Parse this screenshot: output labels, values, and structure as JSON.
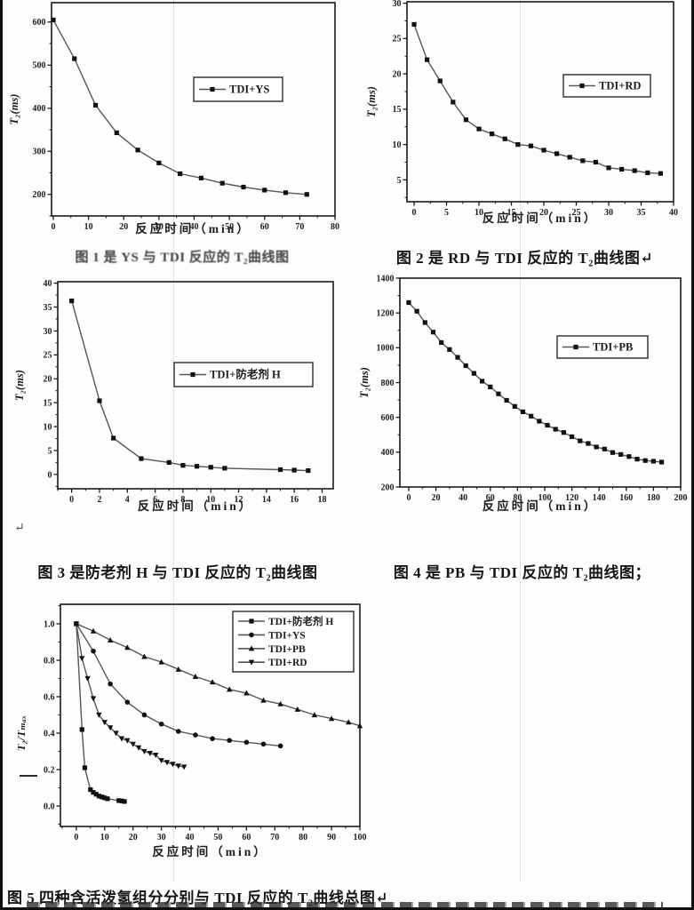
{
  "page": {
    "caption_fig1": "图 1 是 YS 与 TDI 反应的 T₂曲线图",
    "caption_fig2": "图 2 是 RD 与 TDI 反应的 T₂曲线图↵",
    "caption_fig3": "图 3 是防老剂 H 与 TDI 反应的 T₂曲线图",
    "caption_fig4": "图 4 是 PB 与 TDI 反应的 T₂曲线图；",
    "caption_fig5": "图 5  四种含活泼氢组分分别与 TDI 反应的 T₂曲线总图↵",
    "paragraph_mark": "↵",
    "line_color": "#565656",
    "marker_color": "#111111"
  },
  "chart_data": [
    {
      "type": "line",
      "title": "",
      "xlabel": "反应时间（min）",
      "ylabel": "T₂(ms)",
      "xlim": [
        -0.5,
        80
      ],
      "ylim": [
        150,
        645
      ],
      "xticks": [
        0,
        10,
        20,
        30,
        40,
        50,
        60,
        70,
        80
      ],
      "yticks": [
        200,
        300,
        400,
        500,
        600
      ],
      "xminor": 5,
      "yminor": 50,
      "legend_position": "inside-right",
      "series": [
        {
          "name": "TDI+YS",
          "marker": "square",
          "x": [
            0,
            6,
            12,
            18,
            24,
            30,
            36,
            42,
            48,
            54,
            60,
            66,
            72
          ],
          "y": [
            605,
            515,
            407,
            343,
            303,
            273,
            248,
            238,
            226,
            217,
            210,
            204,
            200
          ]
        }
      ]
    },
    {
      "type": "line",
      "title": "",
      "xlabel": "反应时间（min）",
      "ylabel": "T₂(ms)",
      "xlim": [
        -1.1,
        40
      ],
      "ylim": [
        1.9,
        30.2
      ],
      "xticks": [
        0,
        5,
        10,
        15,
        20,
        25,
        30,
        35,
        40
      ],
      "yticks": [
        5,
        10,
        15,
        20,
        25,
        30
      ],
      "xminor": 2.5,
      "yminor": 2.5,
      "legend_position": "inside-right",
      "series": [
        {
          "name": "TDI+RD",
          "marker": "square",
          "x": [
            0,
            2,
            4,
            6,
            8,
            10,
            12,
            14,
            16,
            18,
            20,
            22,
            24,
            26,
            28,
            30,
            32,
            34,
            36,
            38
          ],
          "y": [
            27,
            22,
            19,
            16,
            13.5,
            12.2,
            11.5,
            10.8,
            10.0,
            9.8,
            9.2,
            8.7,
            8.2,
            7.7,
            7.5,
            6.7,
            6.5,
            6.3,
            6.0,
            5.9
          ]
        }
      ]
    },
    {
      "type": "line",
      "title": "",
      "xlabel": "反应时间（min）",
      "ylabel": "T₂(ms)",
      "xlim": [
        -1,
        18.8
      ],
      "ylim": [
        -3,
        40.3
      ],
      "xticks": [
        0,
        2,
        4,
        6,
        8,
        10,
        12,
        14,
        16,
        18
      ],
      "yticks": [
        0,
        5,
        10,
        15,
        20,
        25,
        30,
        35,
        40
      ],
      "xminor": 1,
      "yminor": 2.5,
      "legend_position": "inside-right",
      "series": [
        {
          "name": "TDI+防老剂 H",
          "marker": "square",
          "x": [
            0,
            2,
            3,
            5,
            7,
            8,
            9,
            10,
            11,
            15,
            16,
            17
          ],
          "y": [
            36.3,
            15.4,
            7.6,
            3.3,
            2.5,
            1.9,
            1.7,
            1.5,
            1.3,
            1.0,
            0.9,
            0.8
          ]
        }
      ]
    },
    {
      "type": "line",
      "title": "",
      "xlabel": "反应时间（min）",
      "ylabel": "T₂(ms)",
      "xlim": [
        -6.5,
        200
      ],
      "ylim": [
        200,
        1400
      ],
      "xticks": [
        0,
        20,
        40,
        60,
        80,
        100,
        120,
        140,
        160,
        180,
        200
      ],
      "yticks": [
        200,
        400,
        600,
        800,
        1000,
        1200,
        1400
      ],
      "xminor": 10,
      "yminor": 100,
      "legend_position": "inside-right",
      "series": [
        {
          "name": "TDI+PB",
          "marker": "square",
          "x": [
            0,
            6,
            12,
            18,
            24,
            30,
            36,
            42,
            48,
            54,
            60,
            66,
            72,
            78,
            84,
            90,
            96,
            102,
            108,
            114,
            120,
            126,
            132,
            138,
            144,
            150,
            156,
            162,
            168,
            174,
            180,
            186
          ],
          "y": [
            1260,
            1210,
            1145,
            1090,
            1030,
            990,
            945,
            897,
            853,
            808,
            775,
            735,
            698,
            663,
            632,
            607,
            578,
            555,
            532,
            513,
            489,
            465,
            450,
            430,
            418,
            398,
            387,
            375,
            360,
            352,
            348,
            343
          ]
        }
      ]
    },
    {
      "type": "line",
      "title": "",
      "xlabel": "反应时间（min）",
      "ylabel": "T₂/Tₘₐₓ",
      "xlim": [
        -5.6,
        100
      ],
      "ylim": [
        -0.112,
        1.107
      ],
      "xticks": [
        0,
        10,
        20,
        30,
        40,
        50,
        60,
        70,
        80,
        90,
        100
      ],
      "yticks": [
        0.0,
        0.2,
        0.4,
        0.6,
        0.8,
        1.0
      ],
      "ytick_labels": [
        "0.0",
        "0.2",
        "0.4",
        "0.6",
        "0.8",
        "1.0"
      ],
      "xminor": 5,
      "yminor": 0.1,
      "legend_position": "inside-top-right",
      "series": [
        {
          "name": "TDI+防老剂 H",
          "marker": "square",
          "x": [
            0,
            2,
            3,
            5,
            6,
            7,
            8,
            9,
            10,
            11,
            15,
            16,
            17
          ],
          "y": [
            1.0,
            0.42,
            0.21,
            0.09,
            0.075,
            0.065,
            0.055,
            0.05,
            0.045,
            0.04,
            0.03,
            0.028,
            0.025
          ]
        },
        {
          "name": "TDI+YS",
          "marker": "circle",
          "x": [
            0,
            6,
            12,
            18,
            24,
            30,
            36,
            42,
            48,
            54,
            60,
            66,
            72
          ],
          "y": [
            1.0,
            0.85,
            0.67,
            0.57,
            0.5,
            0.45,
            0.41,
            0.39,
            0.37,
            0.36,
            0.35,
            0.34,
            0.33
          ]
        },
        {
          "name": "TDI+PB",
          "marker": "triangle-up",
          "x": [
            0,
            6,
            12,
            18,
            24,
            30,
            36,
            42,
            48,
            54,
            60,
            66,
            72,
            78,
            84,
            90,
            96,
            100
          ],
          "y": [
            1.0,
            0.96,
            0.91,
            0.87,
            0.82,
            0.79,
            0.75,
            0.71,
            0.68,
            0.64,
            0.62,
            0.58,
            0.56,
            0.53,
            0.5,
            0.48,
            0.46,
            0.44
          ]
        },
        {
          "name": "TDI+RD",
          "marker": "triangle-down",
          "x": [
            0,
            2,
            4,
            6,
            8,
            10,
            12,
            14,
            16,
            18,
            20,
            22,
            24,
            26,
            28,
            30,
            32,
            34,
            36,
            38
          ],
          "y": [
            1.0,
            0.81,
            0.7,
            0.59,
            0.5,
            0.46,
            0.43,
            0.4,
            0.37,
            0.36,
            0.34,
            0.32,
            0.3,
            0.29,
            0.28,
            0.25,
            0.24,
            0.23,
            0.22,
            0.215
          ]
        }
      ]
    }
  ]
}
